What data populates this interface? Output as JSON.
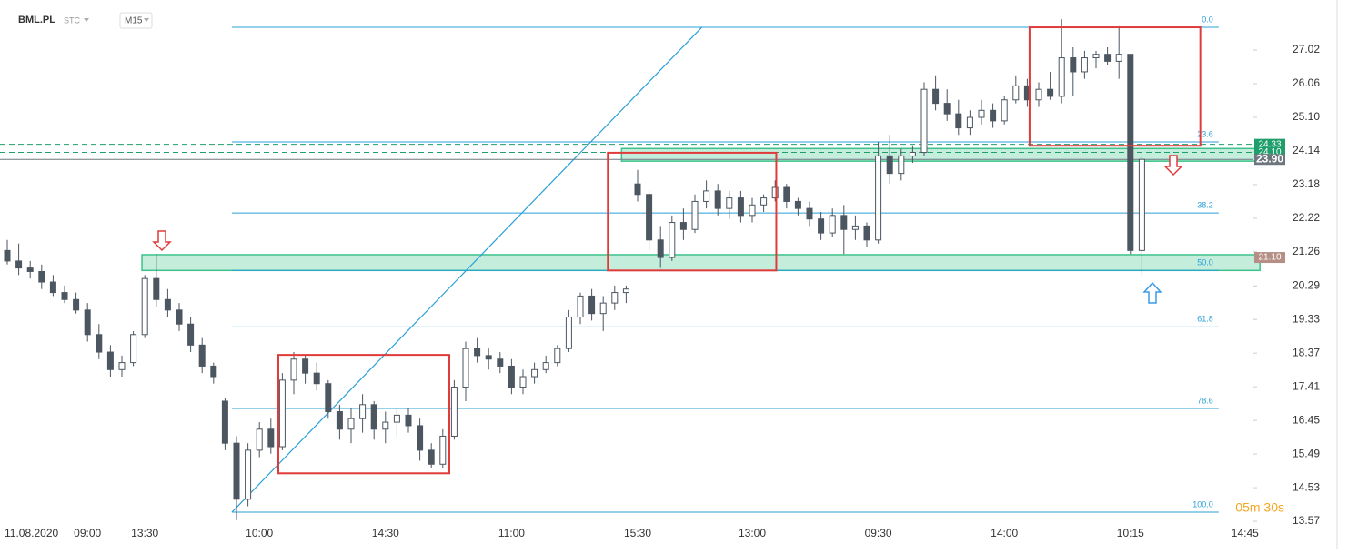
{
  "header": {
    "symbol": "BML.PL",
    "sub": "STC",
    "interval": "M15"
  },
  "timer": "05m 30s",
  "chart_data": {
    "type": "candlestick",
    "categories": [
      "11.08.2020",
      null,
      null,
      null,
      null,
      null,
      null,
      "09:00",
      null,
      null,
      null,
      null,
      "13:30",
      null,
      null,
      null,
      null,
      null,
      null,
      null,
      null,
      null,
      "10:00",
      null,
      null,
      null,
      null,
      null,
      null,
      null,
      null,
      null,
      null,
      "14:30",
      null,
      null,
      null,
      null,
      null,
      null,
      null,
      null,
      null,
      null,
      "11:00",
      null,
      null,
      null,
      null,
      null,
      null,
      null,
      null,
      null,
      null,
      "15:30",
      null,
      null,
      null,
      null,
      null,
      null,
      null,
      null,
      null,
      "13:00",
      null,
      null,
      null,
      null,
      null,
      null,
      null,
      null,
      null,
      null,
      "09:30",
      null,
      null,
      null,
      null,
      null,
      null,
      null,
      null,
      null,
      null,
      "14:00",
      null,
      null,
      null,
      null,
      null,
      null,
      null,
      null,
      null,
      null,
      "10:15",
      null,
      null,
      null,
      null,
      null,
      null,
      null,
      null,
      null,
      "14:45"
    ],
    "open": [
      21.3,
      21.0,
      20.8,
      20.7,
      20.4,
      20.1,
      19.9,
      19.6,
      18.9,
      18.4,
      17.9,
      18.1,
      18.9,
      20.5,
      19.9,
      19.6,
      19.2,
      18.6,
      18.0,
      17.0,
      15.8,
      14.2,
      15.6,
      16.2,
      15.7,
      17.6,
      18.2,
      17.8,
      17.5,
      16.7,
      16.2,
      16.5,
      16.9,
      16.2,
      16.4,
      16.6,
      16.3,
      15.6,
      15.2,
      16.0,
      17.4,
      18.5,
      18.3,
      18.2,
      18.0,
      17.4,
      17.7,
      17.9,
      18.1,
      18.5,
      19.4,
      20.0,
      19.5,
      19.8,
      20.1,
      23.2,
      22.9,
      21.6,
      21.1,
      22.1,
      21.9,
      22.7,
      23.0,
      22.5,
      22.8,
      22.3,
      22.6,
      22.8,
      23.1,
      22.7,
      22.5,
      22.2,
      21.8,
      22.3,
      21.9,
      22.0,
      21.6,
      24.0,
      23.5,
      24.0,
      24.1,
      25.9,
      25.5,
      25.2,
      24.8,
      25.1,
      25.3,
      25.0,
      25.6,
      26.0,
      25.6,
      25.9,
      25.7,
      26.8,
      26.4,
      26.8,
      26.9,
      26.7,
      26.9,
      21.3,
      null,
      null,
      null,
      null,
      null,
      null,
      null,
      null,
      null
    ],
    "high": [
      21.6,
      21.5,
      21.0,
      20.9,
      20.6,
      20.3,
      20.1,
      19.8,
      19.2,
      18.6,
      18.3,
      19.0,
      20.6,
      21.2,
      20.2,
      19.8,
      19.4,
      18.8,
      18.1,
      17.1,
      16.0,
      15.8,
      16.4,
      16.5,
      17.8,
      18.4,
      18.3,
      18.1,
      17.6,
      16.9,
      16.8,
      17.2,
      17.0,
      16.7,
      16.8,
      16.8,
      16.5,
      15.8,
      16.2,
      17.6,
      18.7,
      18.8,
      18.5,
      18.4,
      18.2,
      17.9,
      18.1,
      18.3,
      18.6,
      19.6,
      20.1,
      20.2,
      20.0,
      20.3,
      20.3,
      23.6,
      23.0,
      22.0,
      22.3,
      22.5,
      22.9,
      23.3,
      23.2,
      23.0,
      23.0,
      22.8,
      22.9,
      23.3,
      23.2,
      22.8,
      22.7,
      22.4,
      22.5,
      22.6,
      22.3,
      22.1,
      24.4,
      24.6,
      24.2,
      24.3,
      26.1,
      26.3,
      25.9,
      25.6,
      25.3,
      25.6,
      25.5,
      25.7,
      26.3,
      26.2,
      26.1,
      26.4,
      27.9,
      27.1,
      27.0,
      27.0,
      27.1,
      27.7,
      26.9,
      24.0,
      null,
      null,
      null,
      null,
      null,
      null,
      null,
      null,
      null
    ],
    "low": [
      20.9,
      20.6,
      20.5,
      20.2,
      20.0,
      19.8,
      19.5,
      18.7,
      18.2,
      17.7,
      17.7,
      18.0,
      18.8,
      19.7,
      19.4,
      19.0,
      18.4,
      17.8,
      17.5,
      15.6,
      13.6,
      14.0,
      15.4,
      15.5,
      15.6,
      17.2,
      17.5,
      17.3,
      16.5,
      15.9,
      15.8,
      16.1,
      15.9,
      15.8,
      16.0,
      16.1,
      15.3,
      15.1,
      15.1,
      15.9,
      17.0,
      18.1,
      17.9,
      17.8,
      17.2,
      17.2,
      17.5,
      17.8,
      18.0,
      18.4,
      19.2,
      19.3,
      19.0,
      19.6,
      19.8,
      22.7,
      21.3,
      20.8,
      21.0,
      21.6,
      21.8,
      22.5,
      22.3,
      22.2,
      22.1,
      22.1,
      22.4,
      22.7,
      22.5,
      22.3,
      22.0,
      21.6,
      21.7,
      21.2,
      21.6,
      21.4,
      21.5,
      23.2,
      23.3,
      23.8,
      24.0,
      25.3,
      25.0,
      24.6,
      24.6,
      24.9,
      24.8,
      24.9,
      25.5,
      25.4,
      25.4,
      25.6,
      25.5,
      25.7,
      26.2,
      26.5,
      26.6,
      26.2,
      21.2,
      20.6,
      null,
      null,
      null,
      null,
      null,
      null,
      null,
      null,
      null
    ],
    "close": [
      21.0,
      20.8,
      20.7,
      20.4,
      20.1,
      19.9,
      19.6,
      18.9,
      18.4,
      17.9,
      18.1,
      18.9,
      20.5,
      19.9,
      19.6,
      19.2,
      18.6,
      18.0,
      17.7,
      15.8,
      14.2,
      15.6,
      16.2,
      15.7,
      17.6,
      18.2,
      17.8,
      17.5,
      16.7,
      16.2,
      16.5,
      16.9,
      16.2,
      16.4,
      16.6,
      16.3,
      15.6,
      15.2,
      16.0,
      17.4,
      18.5,
      18.3,
      18.2,
      18.0,
      17.4,
      17.7,
      17.9,
      18.1,
      18.5,
      19.4,
      20.0,
      19.5,
      19.8,
      20.1,
      20.2,
      22.9,
      21.6,
      21.1,
      22.1,
      21.9,
      22.7,
      23.0,
      22.5,
      22.8,
      22.3,
      22.6,
      22.8,
      23.1,
      22.7,
      22.5,
      22.2,
      21.8,
      22.3,
      21.9,
      22.0,
      21.6,
      24.0,
      23.5,
      24.0,
      24.1,
      25.9,
      25.5,
      25.2,
      24.8,
      25.1,
      25.3,
      25.0,
      25.6,
      26.0,
      25.6,
      25.9,
      25.7,
      26.8,
      26.4,
      26.8,
      26.9,
      26.7,
      26.9,
      21.3,
      23.9,
      null,
      null,
      null,
      null,
      null,
      null,
      null,
      null,
      null
    ],
    "up_color": "#ffffff",
    "down_color": "#4b5661",
    "wick_color": "#4b5661",
    "ylim": [
      13.13,
      28.45
    ],
    "yticks": [
      27.02,
      26.06,
      {
        "value": 25.1,
        "label": "25.10"
      },
      24.14,
      23.18,
      22.22,
      21.26,
      20.29,
      19.33,
      18.37,
      17.41,
      16.45,
      15.49,
      14.53,
      13.57
    ],
    "fib_x": [
      19.6,
      105.7
    ],
    "fib_color": "#2a9fd8",
    "fib_levels": [
      {
        "label": "0.0",
        "price": 27.67
      },
      {
        "label": "23.6",
        "price": 24.4
      },
      {
        "label": "38.2",
        "price": 22.37
      },
      {
        "label": "50.0",
        "price": 20.73
      },
      {
        "label": "61.8",
        "price": 19.12
      },
      {
        "label": "78.6",
        "price": 16.79
      },
      {
        "label": "100.0",
        "price": 13.83
      }
    ],
    "trendline": {
      "x": [
        19.6,
        60.6
      ],
      "y": [
        13.83,
        27.67
      ],
      "color": "#2a9fd8"
    },
    "box_color": "#e03b3b",
    "boxes": [
      {
        "x": [
          23.65,
          38.57
        ],
        "y": [
          14.94,
          18.32
        ]
      },
      {
        "x": [
          52.4,
          67.1
        ],
        "y": [
          20.73,
          24.09
        ]
      },
      {
        "x": [
          89.2,
          104.1
        ],
        "y": [
          24.29,
          27.67
        ]
      }
    ],
    "zone_color": "#3cc28a",
    "zones": [
      {
        "x": [
          11.75,
          109.3
        ],
        "y": [
          20.73,
          21.18
        ]
      },
      {
        "x": [
          53.6,
          109.3
        ],
        "y": [
          23.85,
          24.21
        ]
      }
    ],
    "price_tags": [
      {
        "value": 24.33,
        "color": "#1e9e6a",
        "line": "dashed"
      },
      {
        "value": 24.1,
        "label": "24.10",
        "color": "#1e9e6a",
        "line": "dashed"
      },
      {
        "value": 23.9,
        "label": "23.90",
        "color": "#6d767e",
        "line": "solid"
      },
      {
        "value": 21.1,
        "label": "21.10",
        "color": "#b58f85",
        "line": "none"
      }
    ]
  }
}
